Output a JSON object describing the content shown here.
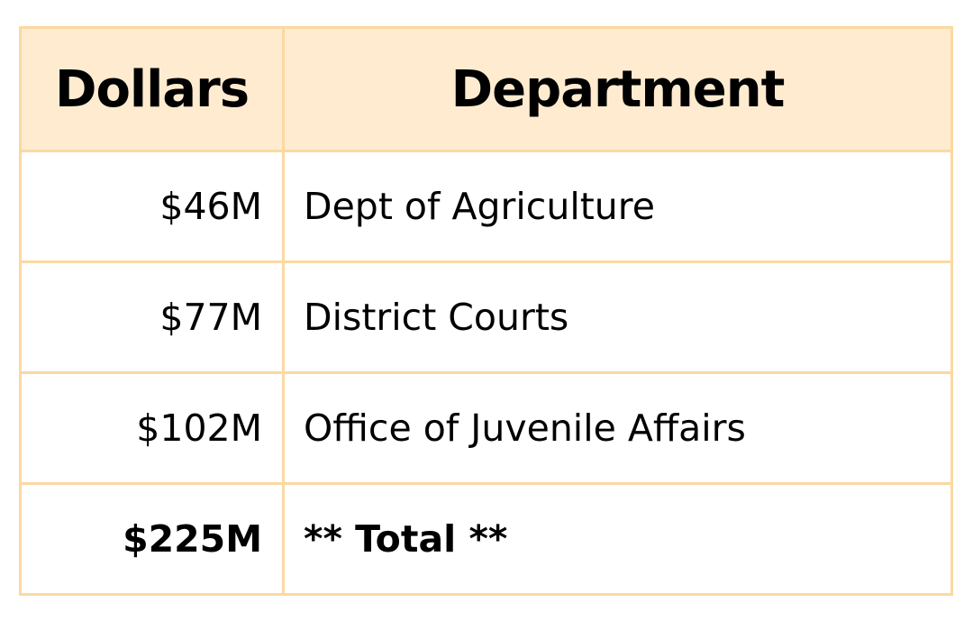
{
  "table": {
    "headers": {
      "dollars": "Dollars",
      "department": "Department"
    },
    "rows": [
      {
        "amount": "$46M",
        "department": "Dept of Agriculture"
      },
      {
        "amount": "$77M",
        "department": "District Courts"
      },
      {
        "amount": "$102M",
        "department": "Office of Juvenile Affairs"
      }
    ],
    "total": {
      "amount": "$225M",
      "department": "** Total **"
    }
  },
  "colors": {
    "border": "#fbd9a1",
    "header_background": "#ffecd0",
    "body_background": "#ffffff",
    "text": "#000000"
  }
}
